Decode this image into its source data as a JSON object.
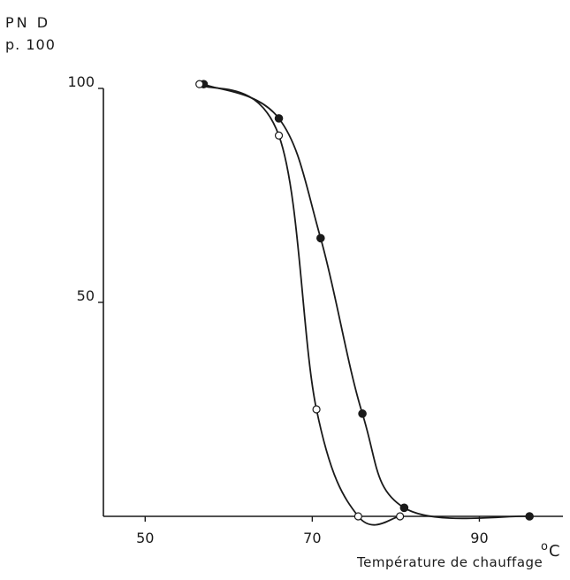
{
  "chart_data": {
    "type": "line",
    "ylabel_lines": [
      "PN D",
      "p. 100"
    ],
    "xlabel": "Température de chauffage",
    "xunit_degree": "o",
    "xunit_letter": "C",
    "xlim": [
      45,
      100
    ],
    "ylim": [
      0,
      100
    ],
    "xticks": [
      50,
      70,
      90
    ],
    "yticks": [
      50,
      100
    ],
    "grid": false,
    "series": [
      {
        "marker": "filled",
        "color": "#1a1a1a",
        "x": [
          57,
          66,
          71,
          76,
          81,
          96
        ],
        "y": [
          101,
          93,
          65,
          24,
          2,
          0
        ]
      },
      {
        "marker": "open",
        "color": "#1a1a1a",
        "x": [
          56.5,
          66,
          70.5,
          75.5,
          80.5
        ],
        "y": [
          101,
          89,
          25,
          0,
          0
        ]
      }
    ]
  }
}
